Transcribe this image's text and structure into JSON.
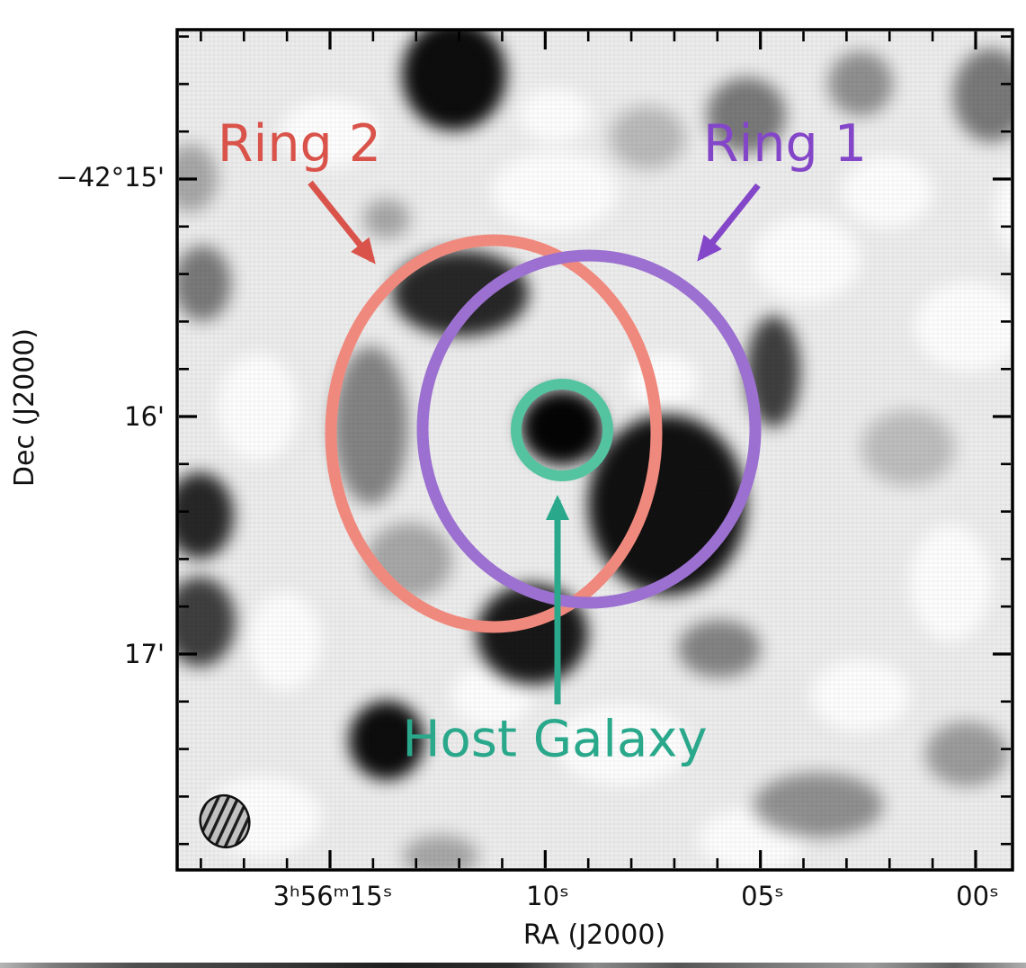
{
  "figure": {
    "axes": {
      "x": {
        "label": "RA (J2000)",
        "tick_labels": [
          "3ʰ56ᵐ15ˢ",
          "10ˢ",
          "05ˢ",
          "00ˢ"
        ]
      },
      "y": {
        "label": "Dec (J2000)",
        "tick_labels": [
          "−42°15'",
          "16'",
          "17'"
        ]
      }
    },
    "annotations": {
      "ring2": {
        "label": "Ring 2",
        "text_color": "#d9534b",
        "circle_color": "#f0897d"
      },
      "ring1": {
        "label": "Ring 1",
        "text_color": "#8446c8",
        "circle_color": "#9b70d0"
      },
      "host_galaxy": {
        "label": "Host Galaxy",
        "text_color": "#2aa88b",
        "circle_color": "#53c3a0"
      }
    }
  },
  "chart_data": {
    "type": "heatmap",
    "description": "Inverted-grayscale radio/sky continuum image (dark = bright emission) with three annotated circular apertures and a hatched beam ellipse at bottom left",
    "xlabel": "RA (J2000)",
    "ylabel": "Dec (J2000)",
    "x_tick_labels": [
      "3h56m15s",
      "10s",
      "05s",
      "00s"
    ],
    "y_tick_labels": [
      "-42°15'",
      "16'",
      "17'"
    ],
    "x_range_ra": [
      "3h56m18.6s",
      "3h55m59.1s"
    ],
    "y_range_dec": [
      "-42°14.4'",
      "-42°17.9'"
    ],
    "grid": false,
    "legend": "none",
    "annotations": [
      {
        "label": "Ring 2",
        "color": "#d9534b",
        "circle_color": "#f0897d",
        "shape": "circle",
        "center_ra": "3h56m11.2s",
        "center_dec": "-42°16.1'",
        "radius_arcmin": 0.8
      },
      {
        "label": "Ring 1",
        "color": "#8446c8",
        "circle_color": "#9b70d0",
        "shape": "circle",
        "center_ra": "3h56m09.0s",
        "center_dec": "-42°16.1'",
        "radius_arcmin": 0.73
      },
      {
        "label": "Host Galaxy",
        "color": "#2aa88b",
        "circle_color": "#53c3a0",
        "shape": "circle",
        "center_ra": "3h56m09.6s",
        "center_dec": "-42°16.1'",
        "radius_arcmin": 0.19
      }
    ],
    "beam": {
      "present": true,
      "style": "hatched ellipse",
      "location": "bottom-left"
    }
  }
}
